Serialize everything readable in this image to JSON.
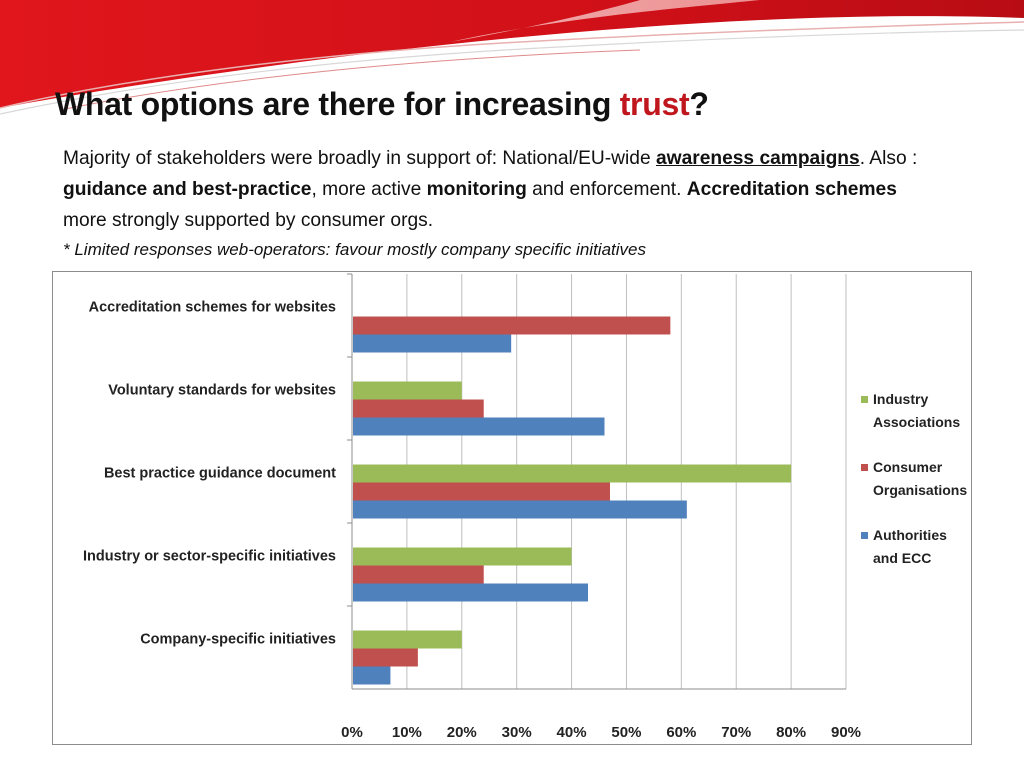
{
  "slide": {
    "title_part1": "What options are there for increasing ",
    "title_accent": "trust",
    "title_part2": "?",
    "body": {
      "t1": "Majority of  stakeholders were broadly in support of: National/EU-wide ",
      "b1": "awareness campaigns",
      "t2": ".  Also : ",
      "b2": "guidance and best-practice",
      "t3": ", more active ",
      "b3": "monitoring",
      "t4": " and enforcement. ",
      "b4": "Accreditation schemes",
      "t5": " more strongly supported by consumer orgs."
    },
    "note": "* Limited responses web-operators: favour mostly company specific initiatives",
    "colors": {
      "accent": "#c0161e",
      "header_band": "#d9141c"
    }
  },
  "chart_data": {
    "type": "bar",
    "orientation": "horizontal",
    "categories": [
      "Accreditation schemes for websites",
      "Voluntary standards for websites",
      "Best practice guidance document",
      "Industry or sector-specific initiatives",
      "Company-specific initiatives"
    ],
    "series": [
      {
        "name": "Industry Associations",
        "legend_lines": [
          "Industry",
          "Associations"
        ],
        "color": "#9bbb59",
        "values": [
          null,
          20,
          80,
          40,
          20
        ]
      },
      {
        "name": "Consumer Organisations",
        "legend_lines": [
          "Consumer",
          "Organisations"
        ],
        "color": "#c0504d",
        "values": [
          58,
          24,
          47,
          24,
          12
        ]
      },
      {
        "name": "Authorities and ECC",
        "legend_lines": [
          "Authorities",
          "and ECC"
        ],
        "color": "#4f81bd",
        "values": [
          29,
          46,
          61,
          43,
          7
        ]
      }
    ],
    "xlim": [
      0,
      90
    ],
    "x_ticks": [
      "0%",
      "10%",
      "20%",
      "30%",
      "40%",
      "50%",
      "60%",
      "70%",
      "80%",
      "90%"
    ],
    "grid": true,
    "legend_position": "right"
  }
}
